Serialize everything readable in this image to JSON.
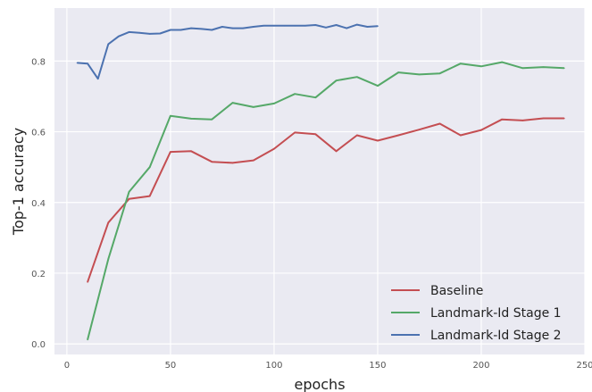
{
  "chart_data": {
    "type": "line",
    "title": "",
    "xlabel": "epochs",
    "ylabel": "Top-1 accuracy",
    "xlim": [
      -6,
      250
    ],
    "ylim": [
      -0.03,
      0.95
    ],
    "xticks": [
      0,
      50,
      100,
      150,
      200,
      250
    ],
    "yticks": [
      0.0,
      0.2,
      0.4,
      0.6,
      0.8
    ],
    "grid": true,
    "legend_position": "bottom-right",
    "series": [
      {
        "name": "Baseline",
        "color": "#c44e52",
        "x": [
          10,
          20,
          30,
          40,
          50,
          60,
          70,
          80,
          90,
          100,
          110,
          120,
          130,
          140,
          150,
          160,
          170,
          180,
          190,
          200,
          210,
          220,
          230,
          240
        ],
        "values": [
          0.175,
          0.343,
          0.41,
          0.418,
          0.543,
          0.545,
          0.515,
          0.512,
          0.519,
          0.552,
          0.598,
          0.593,
          0.545,
          0.59,
          0.575,
          0.59,
          0.606,
          0.623,
          0.59,
          0.605,
          0.635,
          0.632,
          0.638,
          0.638
        ]
      },
      {
        "name": "Landmark-Id Stage 1",
        "color": "#55a868",
        "x": [
          10,
          20,
          30,
          40,
          50,
          60,
          70,
          80,
          90,
          100,
          110,
          120,
          130,
          140,
          150,
          160,
          170,
          180,
          190,
          200,
          210,
          220,
          230,
          240
        ],
        "values": [
          0.012,
          0.24,
          0.43,
          0.5,
          0.645,
          0.637,
          0.635,
          0.682,
          0.67,
          0.68,
          0.707,
          0.697,
          0.745,
          0.755,
          0.73,
          0.768,
          0.762,
          0.765,
          0.793,
          0.785,
          0.797,
          0.78,
          0.783,
          0.78
        ]
      },
      {
        "name": "Landmark-Id Stage 2",
        "color": "#4c72b0",
        "x": [
          5,
          10,
          15,
          20,
          25,
          30,
          35,
          40,
          45,
          50,
          55,
          60,
          65,
          70,
          75,
          80,
          85,
          90,
          95,
          100,
          105,
          110,
          115,
          120,
          125,
          130,
          135,
          140,
          145,
          150
        ],
        "values": [
          0.795,
          0.793,
          0.75,
          0.848,
          0.87,
          0.882,
          0.88,
          0.877,
          0.878,
          0.888,
          0.888,
          0.893,
          0.891,
          0.888,
          0.897,
          0.893,
          0.893,
          0.897,
          0.9,
          0.9,
          0.9,
          0.9,
          0.9,
          0.902,
          0.895,
          0.902,
          0.893,
          0.903,
          0.897,
          0.899
        ]
      }
    ]
  }
}
